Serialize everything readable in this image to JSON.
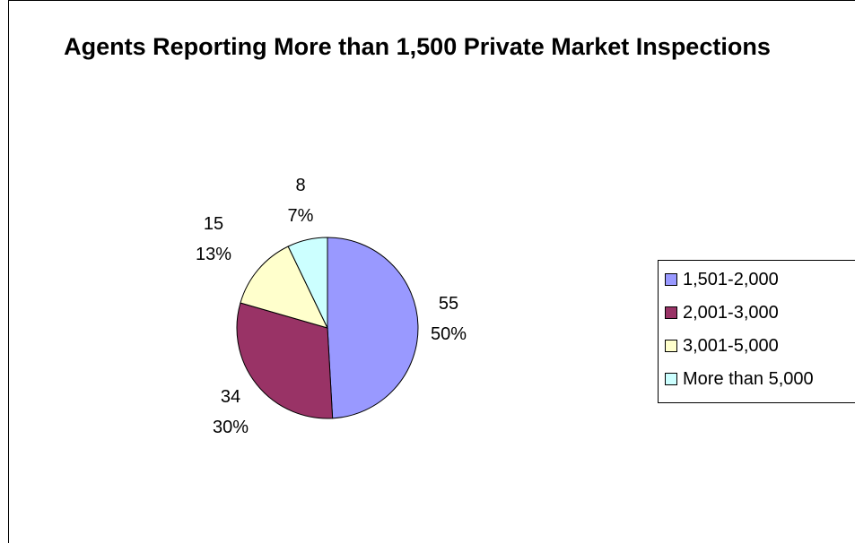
{
  "chart_data": {
    "type": "pie",
    "title": "Agents Reporting More than 1,500 Private Market Inspections",
    "slices": [
      {
        "label": "1,501-2,000",
        "value": 55,
        "percent": "50%",
        "color": "#9999FF"
      },
      {
        "label": "2,001-3,000",
        "value": 34,
        "percent": "30%",
        "color": "#993366"
      },
      {
        "label": "3,001-5,000",
        "value": 15,
        "percent": "13%",
        "color": "#FFFFCC"
      },
      {
        "label": "More than 5,000",
        "value": 8,
        "percent": "7%",
        "color": "#CCFFFF"
      }
    ],
    "legend_position": "right"
  }
}
